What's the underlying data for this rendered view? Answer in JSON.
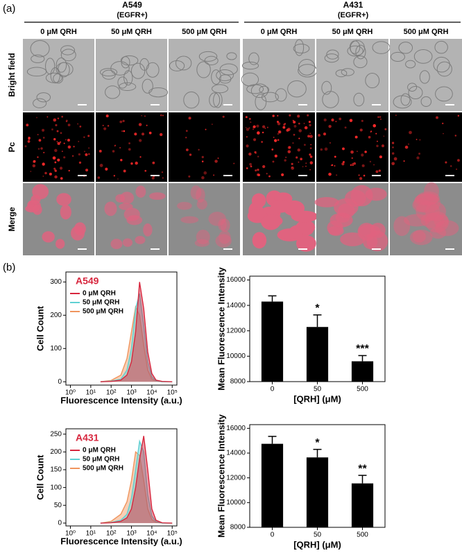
{
  "figure": {
    "panel_a_label": "(a)",
    "panel_b_label": "(b)",
    "groups": [
      {
        "name": "A549",
        "subtitle": "(EGFR+)",
        "conditions": [
          "0 μM QRH",
          "50 μM QRH",
          "500 μM QRH"
        ]
      },
      {
        "name": "A431",
        "subtitle": "(EGFR+)",
        "conditions": [
          "0 μM QRH",
          "50 μM QRH",
          "500 μM QRH"
        ]
      }
    ],
    "rows": [
      "Bright field",
      "Pc",
      "Merge"
    ]
  },
  "chart_data": [
    {
      "type": "area",
      "title": "A549",
      "xlabel": "Fluorescence Intensity (a.u.)",
      "ylabel": "Cell Count",
      "xscale": "log",
      "xlim": [
        0.6,
        170000
      ],
      "xticks": [
        {
          "value": 1,
          "label": "10⁰"
        },
        {
          "value": 10,
          "label": "10¹"
        },
        {
          "value": 100,
          "label": "10²"
        },
        {
          "value": 1000,
          "label": "10³"
        },
        {
          "value": 10000,
          "label": "10⁴"
        },
        {
          "value": 100000,
          "label": "10⁵"
        }
      ],
      "ylim": [
        -10,
        330
      ],
      "yticks": [
        0,
        100,
        200,
        300
      ],
      "legend": "upper left",
      "x": [
        30,
        100,
        300,
        600,
        1000,
        1600,
        2500,
        4000,
        6300,
        10000,
        16000,
        32000,
        100000
      ],
      "series": [
        {
          "name": "0 μM QRH",
          "color": "#d7263d",
          "values": [
            0,
            1,
            5,
            20,
            60,
            150,
            300,
            220,
            90,
            25,
            5,
            1,
            0
          ]
        },
        {
          "name": "50 μM QRH",
          "color": "#5fd0d3",
          "values": [
            0,
            2,
            8,
            35,
            100,
            220,
            265,
            170,
            60,
            15,
            3,
            0,
            0
          ]
        },
        {
          "name": "500 μM QRH",
          "color": "#f0955e",
          "values": [
            0,
            4,
            20,
            70,
            150,
            225,
            200,
            110,
            35,
            8,
            2,
            0,
            0
          ]
        }
      ]
    },
    {
      "type": "bar",
      "xlabel": "[QRH] (μM)",
      "ylabel": "Mean Fluorescence Intensity",
      "categories": [
        "0",
        "50",
        "500"
      ],
      "values": [
        14300,
        12300,
        9600
      ],
      "errors": [
        450,
        950,
        450
      ],
      "significance": [
        null,
        "*",
        "***"
      ],
      "color": "#000000",
      "ylim": [
        8000,
        16300
      ],
      "yticks": [
        8000,
        10000,
        12000,
        14000,
        16000
      ]
    },
    {
      "type": "area",
      "title": "A431",
      "xlabel": "Fluorescence Intensity (a.u.)",
      "ylabel": "Cell Count",
      "xscale": "log",
      "xlim": [
        0.6,
        170000
      ],
      "xticks": [
        {
          "value": 1,
          "label": "10⁰"
        },
        {
          "value": 10,
          "label": "10¹"
        },
        {
          "value": 100,
          "label": "10²"
        },
        {
          "value": 1000,
          "label": "10³"
        },
        {
          "value": 10000,
          "label": "10⁴"
        },
        {
          "value": 100000,
          "label": "10⁵"
        }
      ],
      "ylim": [
        -8,
        265
      ],
      "yticks": [
        0,
        50,
        100,
        150,
        200,
        250
      ],
      "legend": "upper left",
      "x": [
        30,
        100,
        300,
        600,
        1000,
        1600,
        2500,
        4000,
        6300,
        10000,
        16000,
        32000,
        100000
      ],
      "series": [
        {
          "name": "0 μM QRH",
          "color": "#d7263d",
          "values": [
            0,
            1,
            5,
            15,
            40,
            100,
            180,
            245,
            150,
            40,
            8,
            1,
            0
          ]
        },
        {
          "name": "50 μM QRH",
          "color": "#5fd0d3",
          "values": [
            0,
            2,
            8,
            25,
            70,
            150,
            230,
            200,
            80,
            20,
            4,
            0,
            0
          ]
        },
        {
          "name": "500 μM QRH",
          "color": "#f0955e",
          "values": [
            0,
            5,
            25,
            60,
            120,
            200,
            190,
            120,
            40,
            10,
            2,
            0,
            0
          ]
        }
      ]
    },
    {
      "type": "bar",
      "xlabel": "[QRH] (μM)",
      "ylabel": "Mean Fluorescence Intensity",
      "categories": [
        "0",
        "50",
        "500"
      ],
      "values": [
        14750,
        13650,
        11550
      ],
      "errors": [
        600,
        650,
        650
      ],
      "significance": [
        null,
        "*",
        "**"
      ],
      "color": "#000000",
      "ylim": [
        8000,
        16300
      ],
      "yticks": [
        8000,
        10000,
        12000,
        14000,
        16000
      ]
    }
  ]
}
